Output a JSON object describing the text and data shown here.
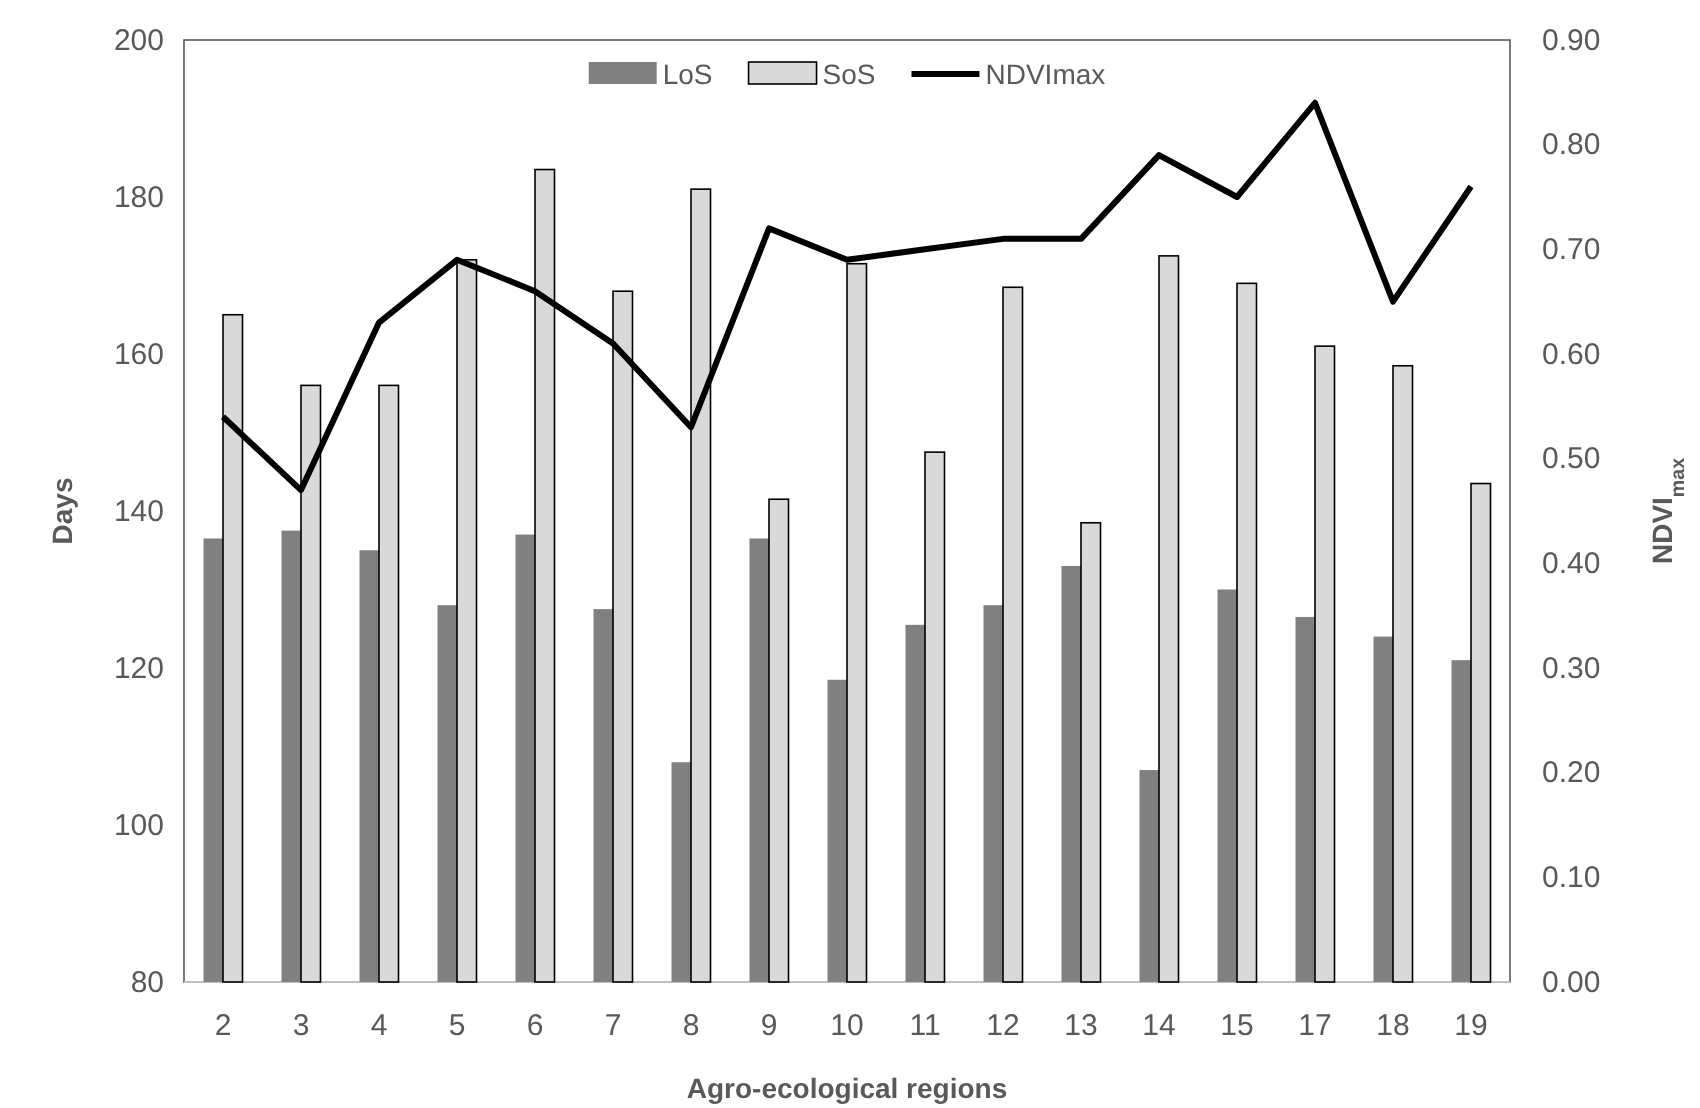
{
  "chart_data": {
    "type": "bar",
    "xlabel": "Agro-ecological regions",
    "ylabel": "Days",
    "y2label": "NDVI$_{max}$",
    "categories": [
      "2",
      "3",
      "4",
      "5",
      "6",
      "7",
      "8",
      "9",
      "10",
      "11",
      "12",
      "13",
      "14",
      "15",
      "17",
      "18",
      "19"
    ],
    "series": [
      {
        "name": "LoS",
        "color": "#808080",
        "values": [
          136.5,
          137.5,
          135,
          128,
          137,
          127.5,
          108,
          136.5,
          118.5,
          125.5,
          128,
          133,
          107,
          130,
          126.5,
          124,
          121
        ]
      },
      {
        "name": "SoS",
        "color": "#d9d9d9",
        "values": [
          165,
          156,
          156,
          172,
          183.5,
          168,
          181,
          141.5,
          171.5,
          147.5,
          168.5,
          138.5,
          172.5,
          169,
          161,
          158.5,
          143.5
        ]
      },
      {
        "name": "NDVImax",
        "type": "line",
        "axis": "y2",
        "color": "#000000",
        "values": [
          0.54,
          0.47,
          0.63,
          0.69,
          0.66,
          0.61,
          0.53,
          0.72,
          0.69,
          0.7,
          0.71,
          0.71,
          0.79,
          0.75,
          0.84,
          0.65,
          0.76
        ]
      }
    ],
    "ylim": [
      80,
      200
    ],
    "yticks": [
      80,
      100,
      120,
      140,
      160,
      180,
      200
    ],
    "y2lim": [
      0,
      0.9
    ],
    "y2ticks": [
      {
        "value": 0,
        "label": "0.00"
      },
      {
        "value": 0.1,
        "label": "0.10"
      },
      {
        "value": 0.2,
        "label": "0.20"
      },
      {
        "value": 0.3,
        "label": "0.30"
      },
      {
        "value": 0.4,
        "label": "0.40"
      },
      {
        "value": 0.5,
        "label": "0.50"
      },
      {
        "value": 0.6,
        "label": "0.60"
      },
      {
        "value": 0.7,
        "label": "0.70"
      },
      {
        "value": 0.8,
        "label": "0.80"
      },
      {
        "value": 0.9,
        "label": "0.90"
      }
    ],
    "legend": "top",
    "grid": false
  }
}
